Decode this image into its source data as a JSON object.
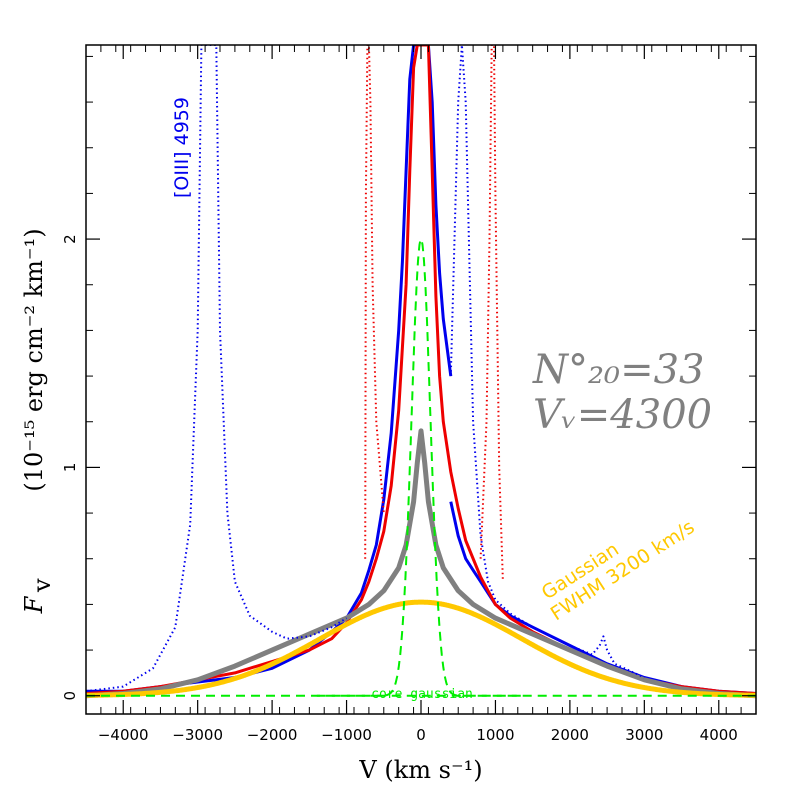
{
  "chart_data": {
    "type": "line",
    "xlabel": "V (km s⁻¹)",
    "ylabel_symbol": "F",
    "ylabel_subscript": "v",
    "ylabel_units": "(10⁻¹⁵ erg cm⁻² km⁻¹)",
    "xlim": [
      -4500,
      4500
    ],
    "ylim": [
      -0.08,
      2.85
    ],
    "xticks": [
      -4000,
      -3000,
      -2000,
      -1000,
      0,
      1000,
      2000,
      3000,
      4000
    ],
    "xtick_labels": [
      "−4000",
      "−3000",
      "−2000",
      "−1000",
      "0",
      "1000",
      "2000",
      "3000",
      "4000"
    ],
    "yticks": [
      0,
      1,
      2
    ],
    "ytick_labels": [
      "0",
      "1",
      "2"
    ],
    "annotations": {
      "oiii": "[OIII] 4959",
      "n20_label": "N°₂₀=33",
      "vw_label": "Vᵥ=4300",
      "gaussian_label": "Gaussian",
      "fwhm_label": "FWHM 3200 km/s",
      "core_label": "core gaussian"
    },
    "series": [
      {
        "name": "observed spectrum (blue)",
        "color": "#0000ee",
        "style": "solid",
        "x": [
          -4500,
          -4000,
          -3500,
          -3000,
          -2500,
          -2000,
          -1500,
          -1200,
          -1000,
          -800,
          -700,
          -600,
          -500,
          -400,
          -300,
          -250,
          -200,
          -150,
          -100,
          -50,
          0,
          50,
          100,
          150,
          200,
          250,
          300,
          400
        ],
        "y": [
          0.02,
          0.02,
          0.04,
          0.06,
          0.08,
          0.12,
          0.2,
          0.28,
          0.34,
          0.45,
          0.55,
          0.66,
          0.86,
          1.15,
          1.6,
          1.9,
          2.3,
          2.7,
          2.85,
          2.85,
          2.85,
          2.85,
          2.85,
          2.6,
          2.15,
          1.85,
          1.65,
          1.4
        ]
      },
      {
        "name": "observed spectrum (blue, red side)",
        "color": "#0000ee",
        "style": "solid",
        "x": [
          400,
          500,
          600,
          700,
          800,
          900,
          1000,
          1200,
          1500,
          2000,
          2500,
          3000,
          3500,
          4000,
          4500
        ],
        "y": [
          0.85,
          0.7,
          0.6,
          0.55,
          0.5,
          0.45,
          0.4,
          0.35,
          0.3,
          0.22,
          0.14,
          0.08,
          0.04,
          0.02,
          0.01
        ]
      },
      {
        "name": "reflected spectrum (red)",
        "color": "#ee0000",
        "style": "solid",
        "x": [
          -4500,
          -4000,
          -3500,
          -3000,
          -2500,
          -2000,
          -1500,
          -1200,
          -1000,
          -800,
          -700,
          -600,
          -500,
          -400,
          -300,
          -200,
          -150,
          -100,
          -50,
          0,
          50,
          100,
          150,
          200,
          250,
          300,
          400,
          500,
          600,
          800,
          900,
          1000,
          1200,
          1500,
          2000,
          2500,
          3000,
          3500,
          4000,
          4500
        ],
        "y": [
          0.01,
          0.02,
          0.04,
          0.07,
          0.1,
          0.15,
          0.2,
          0.25,
          0.32,
          0.42,
          0.5,
          0.6,
          0.72,
          0.92,
          1.25,
          1.8,
          2.3,
          2.75,
          2.85,
          2.85,
          2.85,
          2.85,
          2.3,
          1.75,
          1.4,
          1.2,
          0.98,
          0.82,
          0.68,
          0.52,
          0.46,
          0.4,
          0.34,
          0.28,
          0.2,
          0.13,
          0.07,
          0.04,
          0.02,
          0.01
        ]
      },
      {
        "name": "model profile (gray)",
        "color": "#808080",
        "style": "solid",
        "x": [
          -4500,
          -4000,
          -3500,
          -3000,
          -2500,
          -2000,
          -1500,
          -1000,
          -700,
          -500,
          -300,
          -200,
          -100,
          -50,
          0,
          50,
          100,
          200,
          300,
          500,
          700,
          1000,
          1500,
          2000,
          2500,
          3000,
          3500,
          4000,
          4500
        ],
        "y": [
          0.0,
          0.01,
          0.03,
          0.07,
          0.13,
          0.2,
          0.27,
          0.34,
          0.4,
          0.46,
          0.56,
          0.66,
          0.85,
          1.02,
          1.16,
          1.02,
          0.85,
          0.66,
          0.56,
          0.46,
          0.4,
          0.34,
          0.27,
          0.2,
          0.13,
          0.07,
          0.03,
          0.01,
          0.0
        ]
      },
      {
        "name": "Gaussian FWHM 3200 km/s",
        "color": "#ffc800",
        "style": "solid",
        "gaussian": {
          "amp": 0.41,
          "fwhm": 3200,
          "center": 0
        }
      },
      {
        "name": "core gaussian",
        "color": "#00ee00",
        "style": "dashed",
        "gaussian": {
          "amp": 2.0,
          "fwhm": 300,
          "center": 0
        },
        "baseline": -0.001
      },
      {
        "name": "[OIII] 4959 (blue dotted)",
        "color": "#0000ee",
        "style": "dotted",
        "x": [
          -4500,
          -4000,
          -3600,
          -3300,
          -3100,
          -3000,
          -2950,
          -2900,
          -2850,
          -2800,
          -2750,
          -2700,
          -2600,
          -2500,
          -2300,
          -2000,
          -1800,
          -1500,
          -1200,
          -1000
        ],
        "y": [
          0.02,
          0.04,
          0.12,
          0.3,
          0.75,
          1.6,
          2.85,
          2.85,
          2.85,
          2.85,
          2.85,
          1.6,
          0.8,
          0.5,
          0.35,
          0.28,
          0.25,
          0.26,
          0.3,
          0.34
        ]
      },
      {
        "name": "blue dotted red side",
        "color": "#0000ee",
        "style": "dotted",
        "x": [
          400,
          450,
          500,
          550,
          600,
          650,
          700,
          800,
          900,
          1000,
          1200,
          1500,
          2000,
          2300,
          2400,
          2450,
          2500,
          2600,
          3000
        ],
        "y": [
          1.4,
          2.0,
          2.6,
          2.85,
          2.6,
          1.9,
          1.2,
          0.7,
          0.5,
          0.42,
          0.36,
          0.3,
          0.22,
          0.18,
          0.22,
          0.26,
          0.2,
          0.14,
          0.08
        ]
      },
      {
        "name": "red dotted",
        "color": "#ee0000",
        "style": "dotted",
        "x": [
          -750,
          -740,
          -720,
          -700,
          -680,
          -650,
          -600,
          -500
        ],
        "y": [
          0.6,
          2.2,
          2.85,
          2.85,
          2.6,
          1.8,
          1.2,
          0.8
        ]
      },
      {
        "name": "red dotted right",
        "color": "#ee0000",
        "style": "dotted",
        "x": [
          800,
          880,
          920,
          950,
          980,
          1000,
          1050,
          1100
        ],
        "y": [
          0.6,
          1.2,
          2.0,
          2.85,
          2.85,
          2.2,
          1.0,
          0.5
        ]
      }
    ]
  }
}
